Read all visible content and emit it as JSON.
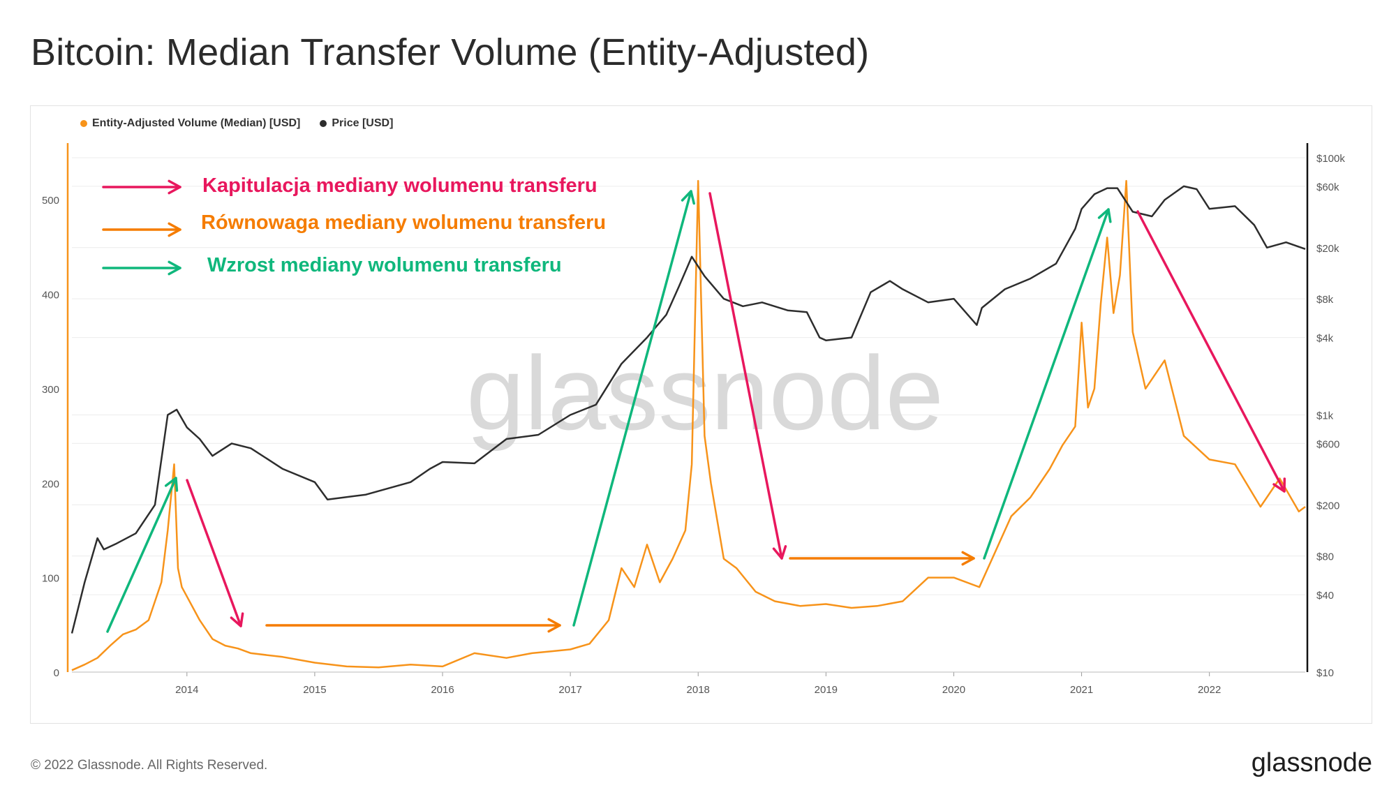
{
  "title": "Bitcoin: Median Transfer Volume (Entity-Adjusted)",
  "footer": {
    "copyright": "© 2022 Glassnode. All Rights Reserved.",
    "brand": "glassnode"
  },
  "watermark": "glassnode",
  "colors": {
    "volume": "#f7931a",
    "price": "#2d2d2d",
    "capitulation": "#e8175d",
    "equilibrium": "#f57c00",
    "growth": "#0fb77c"
  },
  "annotations": {
    "capitulation": "Kapitulacja mediany wolumenu transferu",
    "equilibrium": "Równowaga mediany wolumenu transferu",
    "growth": "Wzrost mediany wolumenu transferu"
  },
  "chart_data": {
    "type": "line",
    "title": "Bitcoin: Median Transfer Volume (Entity-Adjusted)",
    "legend_position": "top-left",
    "grid": true,
    "x_ticks": [
      "2014",
      "2015",
      "2016",
      "2017",
      "2018",
      "2019",
      "2020",
      "2021",
      "2022"
    ],
    "x_range": [
      2013.1,
      2022.75
    ],
    "y_left": {
      "ticks": [
        0,
        100,
        200,
        300,
        400,
        500
      ],
      "range": [
        0,
        560
      ]
    },
    "y_right": {
      "scale": "log",
      "ticks": [
        "$10",
        "$40",
        "$80",
        "$200",
        "$600",
        "$1k",
        "$4k",
        "$8k",
        "$20k",
        "$60k",
        "$100k"
      ],
      "tick_values": [
        10,
        40,
        80,
        200,
        600,
        1000,
        4000,
        8000,
        20000,
        60000,
        100000
      ],
      "range": [
        10,
        130000
      ]
    },
    "series": [
      {
        "name": "Entity-Adjusted Volume (Median) [USD]",
        "axis": "left",
        "x": [
          2013.1,
          2013.2,
          2013.3,
          2013.4,
          2013.5,
          2013.6,
          2013.7,
          2013.8,
          2013.85,
          2013.9,
          2013.93,
          2013.96,
          2014.0,
          2014.1,
          2014.2,
          2014.3,
          2014.4,
          2014.5,
          2014.75,
          2015.0,
          2015.25,
          2015.5,
          2015.75,
          2016.0,
          2016.25,
          2016.5,
          2016.7,
          2016.85,
          2017.0,
          2017.15,
          2017.3,
          2017.4,
          2017.5,
          2017.6,
          2017.7,
          2017.8,
          2017.9,
          2017.95,
          2018.0,
          2018.05,
          2018.1,
          2018.2,
          2018.3,
          2018.45,
          2018.6,
          2018.8,
          2019.0,
          2019.2,
          2019.4,
          2019.6,
          2019.8,
          2020.0,
          2020.2,
          2020.3,
          2020.45,
          2020.6,
          2020.75,
          2020.85,
          2020.95,
          2021.0,
          2021.05,
          2021.1,
          2021.15,
          2021.2,
          2021.25,
          2021.3,
          2021.35,
          2021.4,
          2021.5,
          2021.65,
          2021.8,
          2022.0,
          2022.2,
          2022.4,
          2022.55,
          2022.7,
          2022.75
        ],
        "values": [
          2,
          8,
          15,
          28,
          40,
          45,
          55,
          95,
          150,
          220,
          110,
          90,
          80,
          55,
          35,
          28,
          25,
          20,
          16,
          10,
          6,
          5,
          8,
          6,
          20,
          15,
          20,
          22,
          24,
          30,
          55,
          110,
          90,
          135,
          95,
          120,
          150,
          220,
          520,
          250,
          200,
          120,
          110,
          85,
          75,
          70,
          72,
          68,
          70,
          75,
          100,
          100,
          90,
          120,
          165,
          185,
          215,
          240,
          260,
          370,
          280,
          300,
          390,
          460,
          380,
          420,
          520,
          360,
          300,
          330,
          250,
          225,
          220,
          175,
          205,
          170,
          175
        ]
      },
      {
        "name": "Price [USD]",
        "axis": "right",
        "x": [
          2013.1,
          2013.2,
          2013.3,
          2013.35,
          2013.45,
          2013.6,
          2013.75,
          2013.85,
          2013.92,
          2014.0,
          2014.1,
          2014.2,
          2014.35,
          2014.5,
          2014.75,
          2015.0,
          2015.1,
          2015.4,
          2015.75,
          2015.9,
          2016.0,
          2016.25,
          2016.5,
          2016.75,
          2017.0,
          2017.2,
          2017.4,
          2017.6,
          2017.75,
          2017.85,
          2017.95,
          2018.05,
          2018.2,
          2018.35,
          2018.5,
          2018.7,
          2018.85,
          2018.95,
          2019.0,
          2019.2,
          2019.35,
          2019.5,
          2019.6,
          2019.8,
          2020.0,
          2020.18,
          2020.22,
          2020.4,
          2020.6,
          2020.8,
          2020.95,
          2021.0,
          2021.1,
          2021.2,
          2021.28,
          2021.4,
          2021.55,
          2021.65,
          2021.8,
          2021.9,
          2022.0,
          2022.2,
          2022.35,
          2022.45,
          2022.6,
          2022.75
        ],
        "values": [
          20,
          50,
          110,
          90,
          100,
          120,
          200,
          1000,
          1100,
          800,
          650,
          480,
          600,
          550,
          380,
          300,
          220,
          240,
          300,
          380,
          430,
          420,
          650,
          700,
          1000,
          1200,
          2500,
          4000,
          6000,
          10000,
          17000,
          12000,
          8000,
          7000,
          7500,
          6500,
          6300,
          4000,
          3800,
          4000,
          9000,
          11000,
          9500,
          7500,
          8000,
          5000,
          6800,
          9500,
          11500,
          15000,
          28000,
          40000,
          52000,
          58000,
          58000,
          38000,
          35000,
          47000,
          60000,
          57000,
          40000,
          42000,
          30000,
          20000,
          22000,
          19500
        ]
      }
    ]
  }
}
